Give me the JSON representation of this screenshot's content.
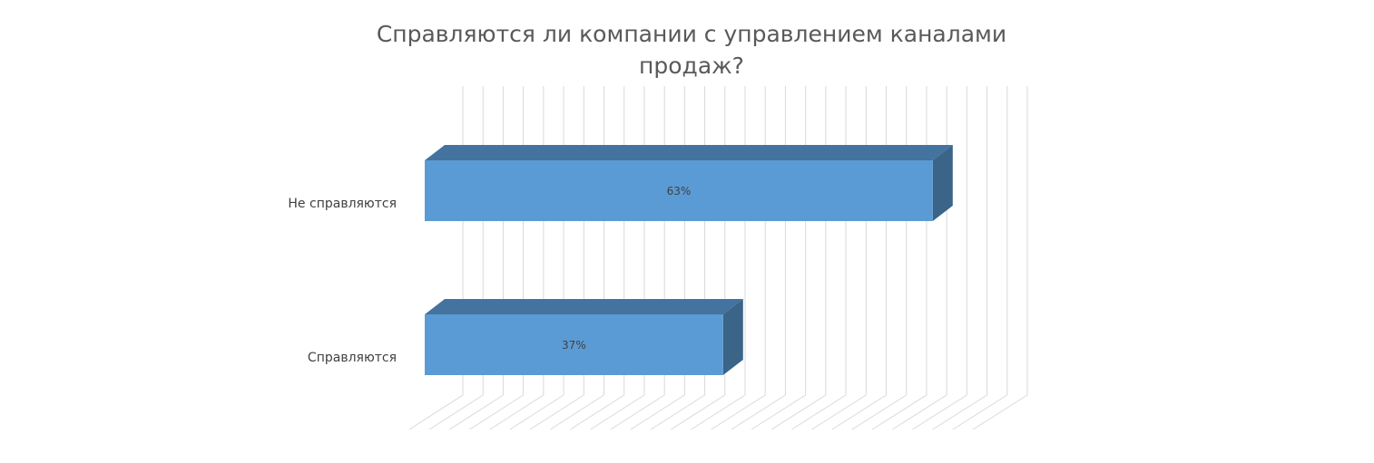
{
  "chart_data": {
    "type": "bar",
    "orientation": "horizontal",
    "style": "3d",
    "title": "Справляются ли компании с управлением каналами продаж?",
    "categories": [
      "Не справляются",
      "Справляются"
    ],
    "values": [
      63,
      37
    ],
    "data_labels": [
      "63%",
      "37%"
    ],
    "xlim": [
      0,
      70
    ],
    "grid": true,
    "legend": "none",
    "colors": {
      "bar_front": "#5b9bd5",
      "bar_top": "#44739f",
      "bar_side": "#3a6488",
      "grid": "#d9d9d9",
      "text": "#404040",
      "title": "#595959"
    }
  }
}
